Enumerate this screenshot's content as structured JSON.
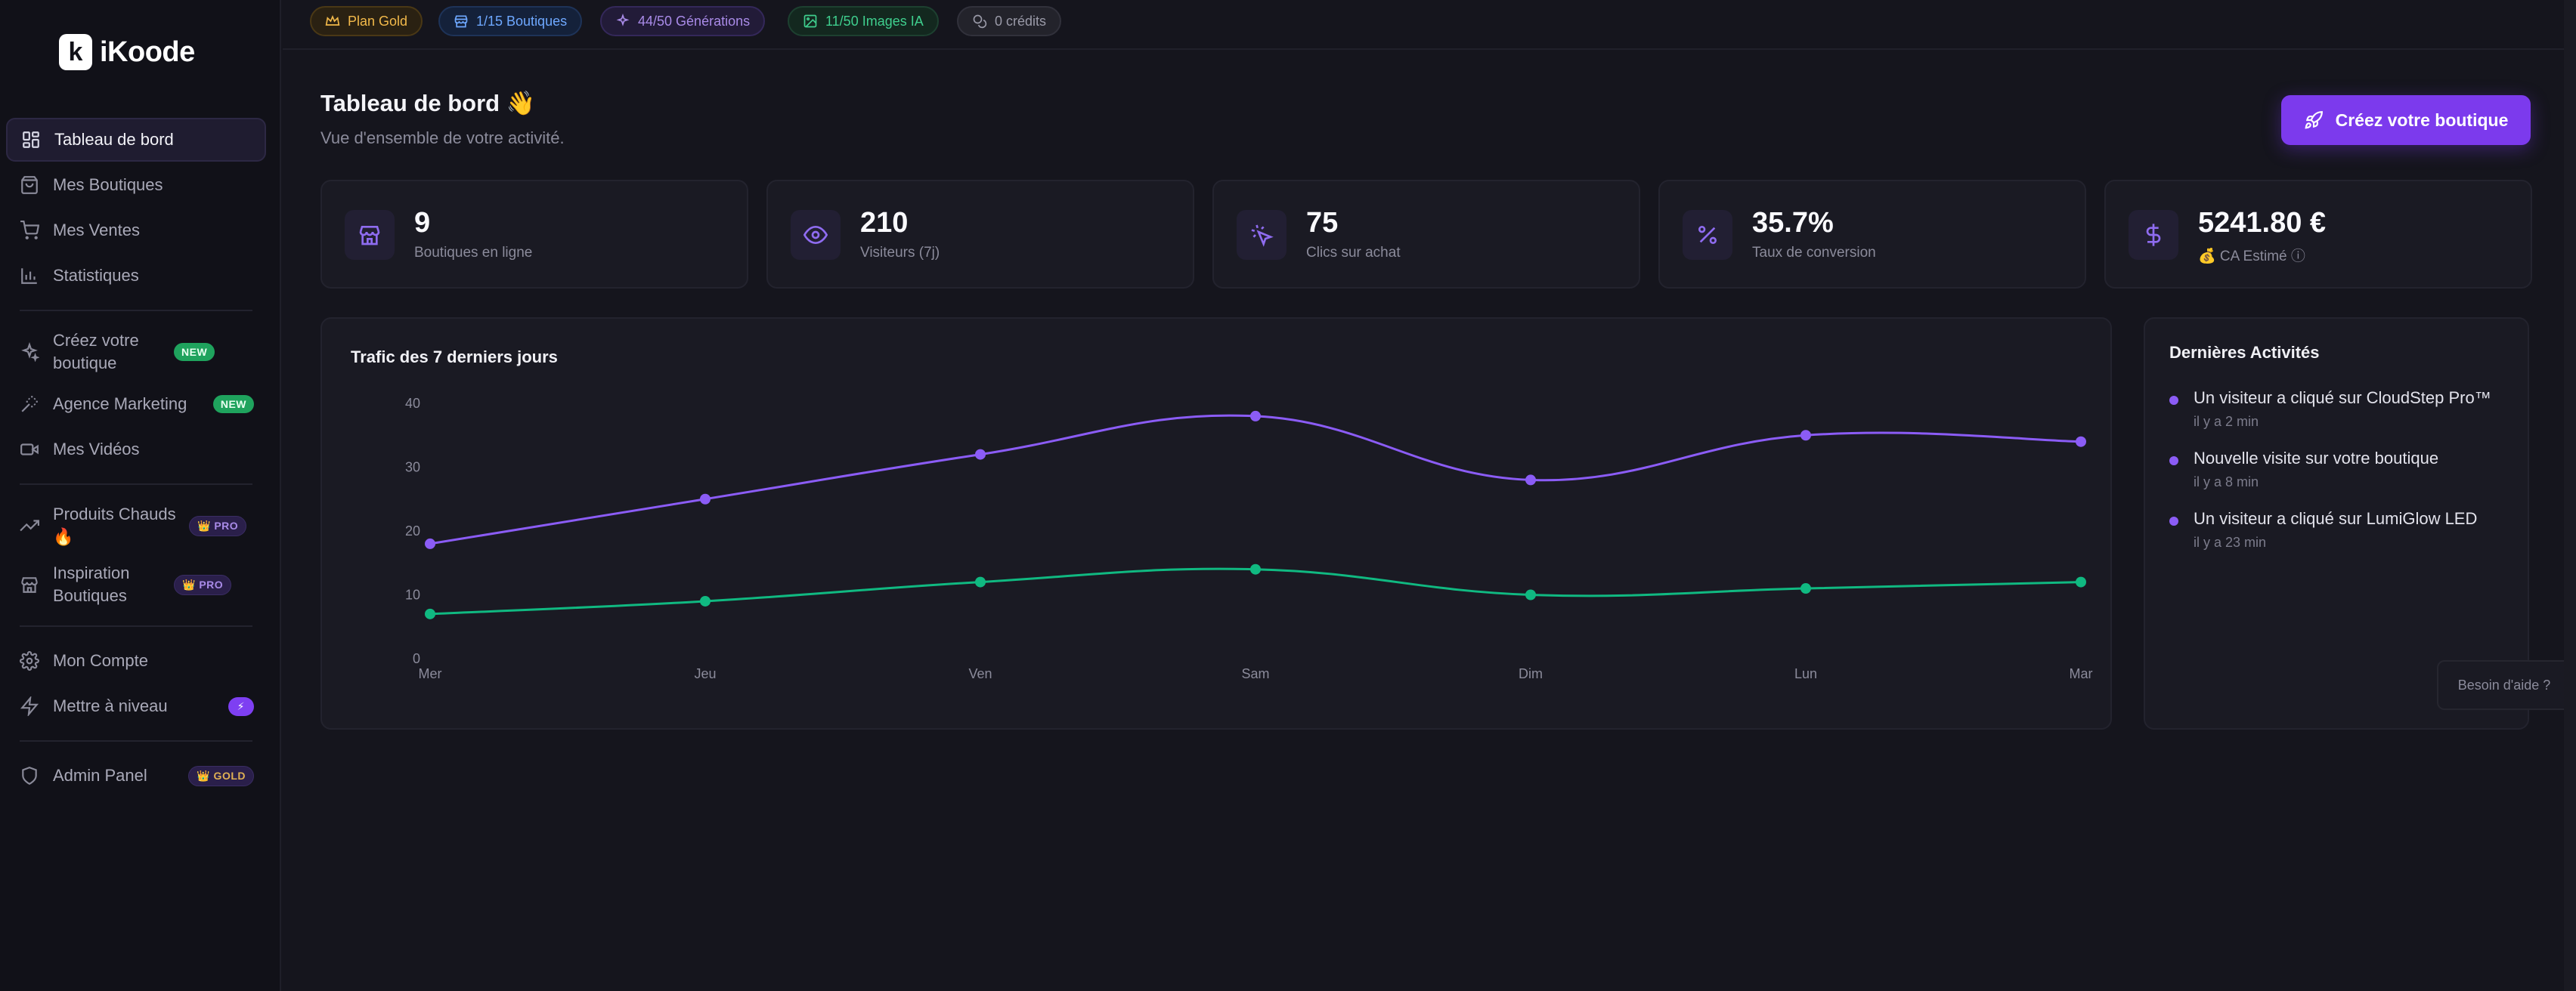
{
  "brand": {
    "name": "iKoode",
    "mark": "k"
  },
  "sidebar": {
    "items": [
      {
        "label": "Tableau de bord"
      },
      {
        "label": "Mes Boutiques"
      },
      {
        "label": "Mes Ventes"
      },
      {
        "label": "Statistiques"
      },
      {
        "label": "Créez votre boutique",
        "badge": "NEW"
      },
      {
        "label": "Agence Marketing",
        "badge": "NEW"
      },
      {
        "label": "Mes Vidéos"
      },
      {
        "label": "Produits Chauds 🔥",
        "badge": "👑 PRO"
      },
      {
        "label": "Inspiration Boutiques",
        "badge": "👑 PRO"
      },
      {
        "label": "Mon Compte"
      },
      {
        "label": "Mettre à niveau",
        "badge": "⚡"
      },
      {
        "label": "Admin Panel",
        "badge": "👑 GOLD"
      }
    ]
  },
  "topbar": {
    "plan": "Plan Gold",
    "boutiques": "1/15 Boutiques",
    "generations": "44/50 Générations",
    "images": "11/50 Images IA",
    "credits": "0 crédits"
  },
  "header": {
    "title": "Tableau de bord 👋",
    "subtitle": "Vue d'ensemble de votre activité.",
    "cta_label": "Créez votre boutique"
  },
  "stats": [
    {
      "value": "9",
      "label": "Boutiques en ligne",
      "icon": "store-icon"
    },
    {
      "value": "210",
      "label": "Visiteurs (7j)",
      "icon": "eye-icon"
    },
    {
      "value": "75",
      "label": "Clics sur achat",
      "icon": "pointer-click-icon"
    },
    {
      "value": "35.7%",
      "label": "Taux de conversion",
      "icon": "percent-icon"
    },
    {
      "value": "5241.80 €",
      "label": "💰 CA Estimé ⓘ",
      "icon": "dollar-icon"
    }
  ],
  "chart_title": "Trafic des 7 derniers jours",
  "chart_data": {
    "type": "line",
    "categories": [
      "Mer",
      "Jeu",
      "Ven",
      "Sam",
      "Dim",
      "Lun",
      "Mar"
    ],
    "series": [
      {
        "values": [
          18,
          25,
          32,
          38,
          28,
          35,
          34
        ],
        "color": "#8b5cf6"
      },
      {
        "values": [
          7,
          9,
          12,
          14,
          10,
          11,
          12
        ],
        "color": "#10b981"
      }
    ],
    "y_ticks": [
      0,
      10,
      20,
      30,
      40
    ],
    "ylim": [
      0,
      40
    ],
    "grid": false
  },
  "activities": {
    "title": "Dernières Activités",
    "items": [
      {
        "text": "Un visiteur a cliqué sur CloudStep Pro™",
        "time": "il y a 2 min"
      },
      {
        "text": "Nouvelle visite sur votre boutique",
        "time": "il y a 8 min"
      },
      {
        "text": "Un visiteur a cliqué sur LumiGlow LED",
        "time": "il y a 23 min"
      }
    ]
  },
  "help_label": "Besoin d'aide ?",
  "colors": {
    "accent": "#7c3aed",
    "purple_line": "#8b5cf6",
    "green_line": "#10b981",
    "gold": "#f2b94a"
  }
}
